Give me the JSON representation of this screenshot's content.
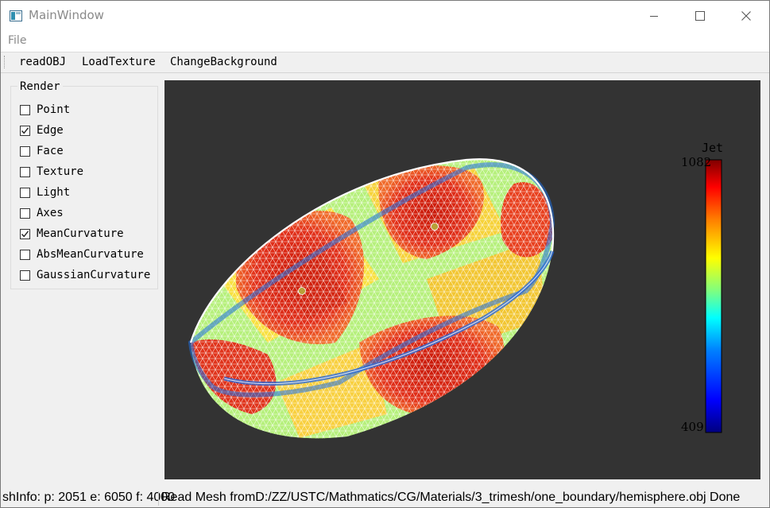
{
  "window": {
    "title": "MainWindow"
  },
  "menubar": {
    "items": [
      {
        "label": "File"
      }
    ]
  },
  "toolbar": {
    "buttons": [
      {
        "label": "readOBJ"
      },
      {
        "label": "LoadTexture"
      },
      {
        "label": "ChangeBackground"
      }
    ]
  },
  "render_group": {
    "title": "Render",
    "options": [
      {
        "label": "Point",
        "checked": false
      },
      {
        "label": "Edge",
        "checked": true
      },
      {
        "label": "Face",
        "checked": false
      },
      {
        "label": "Texture",
        "checked": false
      },
      {
        "label": "Light",
        "checked": false
      },
      {
        "label": "Axes",
        "checked": false
      },
      {
        "label": "MeanCurvature",
        "checked": true
      },
      {
        "label": "AbsMeanCurvature",
        "checked": false
      },
      {
        "label": "GaussianCurvature",
        "checked": false
      }
    ]
  },
  "viewport": {
    "background": "#333333",
    "colorbar": {
      "title": "Jet",
      "max_label": "1082",
      "min_label": "409",
      "colormap": [
        "#00007f",
        "#0000ff",
        "#007fff",
        "#00ffff",
        "#7fff7f",
        "#ffff00",
        "#ff7f00",
        "#ff0000",
        "#7f0000"
      ]
    },
    "mesh_colors": {
      "high": "#e02a10",
      "mid": "#ffe23c",
      "low": "#9ff07a",
      "rim": "#1f6fe0"
    }
  },
  "statusbar": {
    "mesh_info": "shInfo: p: 2051 e: 6050 f: 4000",
    "message": "Read Mesh fromD:/ZZ/USTC/Mathmatics/CG/Materials/3_trimesh/one_boundary/hemisphere.obj Done"
  }
}
